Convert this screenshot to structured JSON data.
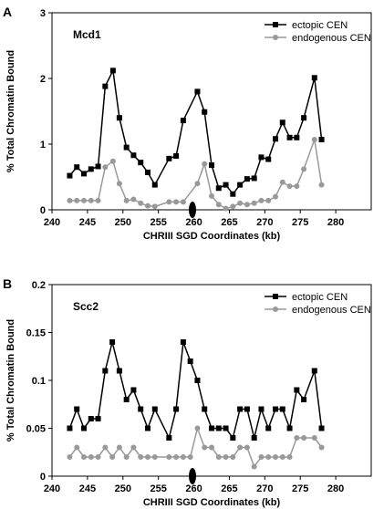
{
  "chart_data": [
    {
      "type": "line",
      "panel_label": "A",
      "title": "Mcd1",
      "xlabel": "CHRIII SGD Coordinates (kb)",
      "ylabel": "% Total Chromatin Bound",
      "xlim": [
        240,
        285
      ],
      "ylim": [
        0,
        3
      ],
      "xticks": [
        "240",
        "245",
        "250",
        "255",
        "260",
        "265",
        "270",
        "275",
        "280"
      ],
      "yticks": [
        "0",
        "1",
        "2",
        "3"
      ],
      "legend_position": "top-right",
      "centromere_marker_x": 259.8,
      "series": [
        {
          "name": "ectopic CEN",
          "color": "#000000",
          "marker": "square",
          "x": [
            242.5,
            243.5,
            244.5,
            245.5,
            246.5,
            247.5,
            248.6,
            249.5,
            250.5,
            251.5,
            252.5,
            253.5,
            254.5,
            256.5,
            257.5,
            258.5,
            260.5,
            261.5,
            262.5,
            263.5,
            264.5,
            265.5,
            266.5,
            267.5,
            268.5,
            269.5,
            270.5,
            271.5,
            272.5,
            273.5,
            274.5,
            275.5,
            277.0,
            278.0
          ],
          "y": [
            0.52,
            0.65,
            0.55,
            0.62,
            0.66,
            1.88,
            2.12,
            1.4,
            0.95,
            0.83,
            0.72,
            0.57,
            0.38,
            0.78,
            0.82,
            1.36,
            1.8,
            1.49,
            0.68,
            0.33,
            0.38,
            0.24,
            0.38,
            0.47,
            0.48,
            0.8,
            0.77,
            1.08,
            1.33,
            1.1,
            1.1,
            1.4,
            2.01,
            1.07
          ]
        },
        {
          "name": "endogenous CEN",
          "color": "#999999",
          "marker": "circle",
          "x": [
            242.5,
            243.5,
            244.5,
            245.5,
            246.5,
            247.5,
            248.6,
            249.5,
            250.5,
            251.5,
            252.5,
            253.5,
            254.5,
            256.5,
            257.5,
            258.5,
            260.5,
            261.5,
            262.5,
            263.5,
            264.5,
            265.5,
            266.5,
            267.5,
            268.5,
            269.5,
            270.5,
            271.5,
            272.5,
            273.5,
            274.5,
            275.5,
            277.0,
            278.0
          ],
          "y": [
            0.14,
            0.14,
            0.14,
            0.14,
            0.14,
            0.65,
            0.74,
            0.4,
            0.14,
            0.16,
            0.1,
            0.06,
            0.05,
            0.12,
            0.12,
            0.12,
            0.4,
            0.7,
            0.21,
            0.08,
            0.02,
            0.05,
            0.1,
            0.08,
            0.1,
            0.14,
            0.14,
            0.2,
            0.42,
            0.36,
            0.36,
            0.62,
            1.07,
            0.38
          ]
        }
      ]
    },
    {
      "type": "line",
      "panel_label": "B",
      "title": "Scc2",
      "xlabel": "CHRIII SGD Coordinates (kb)",
      "ylabel": "% Total Chromatin Bound",
      "xlim": [
        240,
        285
      ],
      "ylim": [
        0,
        0.2
      ],
      "xticks": [
        "240",
        "245",
        "250",
        "255",
        "260",
        "265",
        "270",
        "275",
        "280"
      ],
      "yticks": [
        "0",
        "0.05",
        "0.1",
        "0.15",
        "0.2"
      ],
      "legend_position": "top-right",
      "centromere_marker_x": 259.8,
      "series": [
        {
          "name": "ectopic CEN",
          "color": "#000000",
          "marker": "square",
          "x": [
            242.5,
            243.5,
            244.5,
            245.5,
            246.5,
            247.5,
            248.5,
            249.5,
            250.5,
            251.5,
            252.5,
            253.5,
            254.5,
            256.5,
            257.5,
            258.5,
            259.5,
            260.5,
            261.5,
            262.5,
            263.5,
            264.5,
            265.5,
            266.5,
            267.5,
            268.5,
            269.5,
            270.5,
            271.5,
            272.5,
            273.5,
            274.5,
            275.5,
            277.0,
            278.0
          ],
          "y": [
            0.05,
            0.07,
            0.05,
            0.06,
            0.06,
            0.11,
            0.14,
            0.11,
            0.08,
            0.09,
            0.07,
            0.05,
            0.07,
            0.04,
            0.07,
            0.14,
            0.12,
            0.1,
            0.07,
            0.05,
            0.05,
            0.05,
            0.04,
            0.07,
            0.07,
            0.04,
            0.07,
            0.05,
            0.07,
            0.07,
            0.05,
            0.09,
            0.08,
            0.11,
            0.05
          ]
        },
        {
          "name": "endogenous CEN",
          "color": "#999999",
          "marker": "circle",
          "x": [
            242.5,
            243.5,
            244.5,
            245.5,
            246.5,
            247.5,
            248.5,
            249.5,
            250.5,
            251.5,
            252.5,
            253.5,
            254.5,
            256.5,
            257.5,
            258.5,
            259.5,
            260.5,
            261.5,
            262.5,
            263.5,
            264.5,
            265.5,
            266.5,
            267.5,
            268.5,
            269.5,
            270.5,
            271.5,
            272.5,
            273.5,
            274.5,
            275.5,
            277.0,
            278.0
          ],
          "y": [
            0.02,
            0.03,
            0.02,
            0.02,
            0.02,
            0.03,
            0.02,
            0.03,
            0.02,
            0.03,
            0.02,
            0.02,
            0.02,
            0.02,
            0.02,
            0.02,
            0.02,
            0.05,
            0.03,
            0.03,
            0.02,
            0.02,
            0.02,
            0.03,
            0.03,
            0.01,
            0.02,
            0.02,
            0.02,
            0.02,
            0.02,
            0.04,
            0.04,
            0.04,
            0.03
          ]
        }
      ]
    }
  ]
}
